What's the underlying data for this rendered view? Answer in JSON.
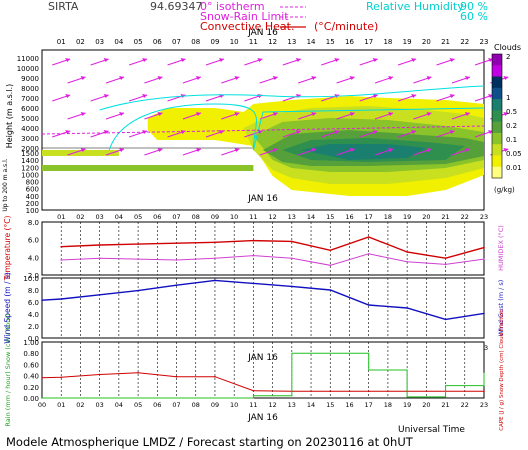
{
  "header": {
    "station": "SIRTA",
    "coords": "94.69347",
    "legend": {
      "isotherm": "0° isotherm",
      "snow_rain": "Snow-Rain Limit",
      "convective": "Convective Heat.",
      "convective_unit": "(°C/minute)",
      "rh_label": "Relative Humidity",
      "rh_90": "90 %",
      "rh_60": "60 %"
    }
  },
  "footer": "Modele Atmospherique LMDZ / Forecast starting on 20230116 at 0hUT",
  "axis_hours": [
    "01",
    "02",
    "03",
    "04",
    "05",
    "06",
    "07",
    "08",
    "09",
    "10",
    "11",
    "12",
    "13",
    "14",
    "15",
    "16",
    "17",
    "18",
    "19",
    "20",
    "21",
    "22",
    "23"
  ],
  "axis_hours_bottom": [
    "00",
    "01",
    "02",
    "03",
    "04",
    "05",
    "06",
    "07",
    "08",
    "09",
    "10",
    "11",
    "12",
    "13",
    "14",
    "15",
    "16",
    "17",
    "18",
    "19",
    "20",
    "21",
    "22",
    "23"
  ],
  "date_label": "JAN 16",
  "xlabel": "Universal Time",
  "colors": {
    "temp": "#d00000",
    "humidex": "#d040d0",
    "wind": "#1010c0",
    "rain": "#d00000",
    "cape": "#d00000",
    "cloud_frac": "#20c020",
    "magenta": "#e020e0",
    "cyan": "#00e0e0"
  },
  "clouds_legend": {
    "title": "Clouds",
    "labels": [
      "1",
      "0.5",
      "0.2",
      "0.1",
      "0.05",
      "0.01"
    ],
    "top_label": "2",
    "colors": [
      "#9000b0",
      "#c000e0",
      "#003060",
      "#10508a",
      "#1a7f6e",
      "#2f8f4f",
      "#55a03a",
      "#8ac32a",
      "#c8e020",
      "#f0f000",
      "#ffff80"
    ],
    "unit": "(g/kg)"
  },
  "chart_data": [
    {
      "type": "area",
      "title": "Height (m a.s.l.)",
      "ylabel": "Height (m a.s.l.)",
      "y_ticks_upper": [
        "11000",
        "10000",
        "9000",
        "8000",
        "7000",
        "6000",
        "5000",
        "4000",
        "3000",
        "2000"
      ],
      "y_ticks_lower": [
        "1500",
        "1400",
        "1200",
        "1000",
        "800",
        "600",
        "400",
        "200",
        "100"
      ],
      "lower_ylabel": "Up to 200 m a.s.l.",
      "series": [
        {
          "name": "Clouds (g/kg) low layer",
          "x": [
            12,
            14,
            16,
            18,
            20,
            22,
            23
          ],
          "values": [
            0.2,
            0.5,
            0.5,
            0.2,
            0.2,
            0.05,
            0.05
          ]
        },
        {
          "name": "Clouds (g/kg) mid layer",
          "x": [
            6,
            8,
            10,
            12,
            14,
            16,
            18,
            20,
            22,
            23
          ],
          "values": [
            0.05,
            0.05,
            0.05,
            0.1,
            0.2,
            0.2,
            0.2,
            0.1,
            0.05,
            0.01
          ]
        }
      ]
    },
    {
      "type": "line",
      "title": "Temperature (°C)",
      "ylabel": "Temperature (°C)",
      "y2label": "HUMIDEX (°C)",
      "ylim": [
        2,
        8
      ],
      "y_ticks": [
        "8.0",
        "6.0",
        "4.0",
        "2.0"
      ],
      "x": [
        1,
        3,
        5,
        7,
        9,
        11,
        13,
        15,
        17,
        19,
        21,
        23
      ],
      "series": [
        {
          "name": "Temperature",
          "values": [
            5.2,
            5.4,
            5.5,
            5.6,
            5.7,
            5.9,
            5.8,
            4.8,
            6.3,
            4.6,
            3.9,
            5.1
          ]
        },
        {
          "name": "HUMIDEX",
          "values": [
            3.7,
            3.9,
            3.8,
            3.7,
            3.9,
            4.2,
            3.9,
            3.1,
            4.4,
            3.5,
            3.2,
            3.8
          ]
        }
      ]
    },
    {
      "type": "line",
      "title": "Wind Speed (m/s)",
      "ylabel": "Wind Speed (m / s)",
      "y2label": "Wind Gust (m / s)",
      "ylim": [
        0,
        10
      ],
      "y_ticks": [
        "10.0",
        "8.0",
        "6.0",
        "4.0",
        "2.0",
        "0.0"
      ],
      "x": [
        0,
        1,
        3,
        5,
        7,
        9,
        11,
        13,
        15,
        17,
        19,
        21,
        23
      ],
      "series": [
        {
          "name": "Wind speed",
          "values": [
            6.3,
            6.5,
            7.2,
            7.9,
            8.8,
            9.6,
            9.1,
            8.6,
            8.0,
            5.5,
            5.0,
            3.1,
            4.1
          ]
        }
      ]
    },
    {
      "type": "line",
      "title": "Rain / Snow / Cloud fraction",
      "ylabel": "Rain (mm / hour) Snow (cm / hour)",
      "y2label": "CAPE (J / g)  Snow Depth (cm)  Cloud Fraction",
      "ylim": [
        0,
        1
      ],
      "y_ticks": [
        "1.00",
        "0.80",
        "0.60",
        "0.40",
        "0.20",
        "0.00"
      ],
      "x": [
        0,
        1,
        3,
        5,
        7,
        9,
        11,
        13,
        15,
        17,
        19,
        21,
        23
      ],
      "series": [
        {
          "name": "Rain",
          "values": [
            0.36,
            0.37,
            0.42,
            0.45,
            0.38,
            0.38,
            0.13,
            0.12,
            0.12,
            0.12,
            0.12,
            0.12,
            0.12
          ]
        },
        {
          "name": "Cloud fraction",
          "values": [
            0,
            0,
            0,
            0,
            0,
            0,
            0.04,
            0.8,
            0.8,
            0.5,
            0.02,
            0.22,
            0.45
          ]
        }
      ]
    }
  ]
}
